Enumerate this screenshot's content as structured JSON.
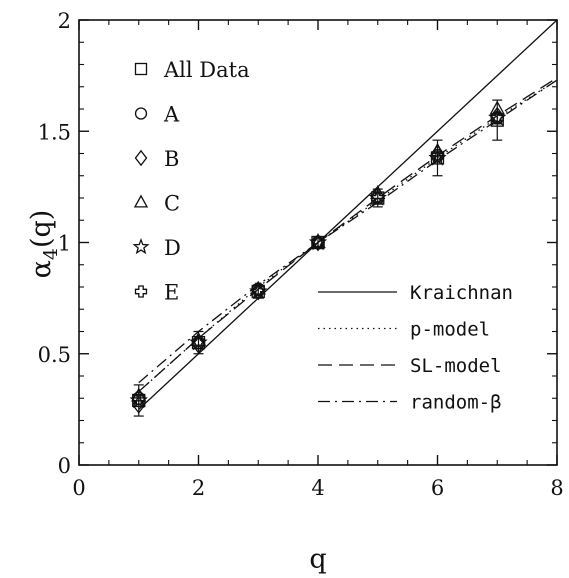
{
  "chart_data": {
    "type": "scatter",
    "title": "",
    "xlabel": "q",
    "ylabel_main": "α",
    "ylabel_sub": "4",
    "ylabel_tail": "(q)",
    "xlim": [
      0,
      8
    ],
    "ylim": [
      0,
      2
    ],
    "x_ticks": [
      0,
      2,
      4,
      6,
      8
    ],
    "x_tick_labels": [
      "0",
      "2",
      "4",
      "6",
      "8"
    ],
    "y_ticks": [
      0,
      0.5,
      1,
      1.5,
      2
    ],
    "y_tick_labels": [
      "0",
      "0.5",
      "1",
      "1.5",
      "2"
    ],
    "grid": false,
    "marker_legend_position": "top-left",
    "line_legend_position": "bottom-right",
    "marker_series": [
      {
        "name": "All Data",
        "marker": "square",
        "x": [
          1,
          2,
          3,
          4,
          5,
          6,
          7
        ],
        "y": [
          0.29,
          0.55,
          0.78,
          1.0,
          1.2,
          1.38,
          1.55
        ],
        "err": [
          0.07,
          0.05,
          0.03,
          0.02,
          0.04,
          0.08,
          0.09
        ]
      },
      {
        "name": "A",
        "marker": "circle",
        "x": [
          1,
          2,
          3,
          4,
          5,
          6,
          7
        ],
        "y": [
          0.3,
          0.55,
          0.79,
          1.0,
          1.2,
          1.39,
          1.56
        ]
      },
      {
        "name": "B",
        "marker": "diamond",
        "x": [
          1,
          2,
          3,
          4,
          5,
          6,
          7
        ],
        "y": [
          0.27,
          0.54,
          0.78,
          1.0,
          1.21,
          1.4,
          1.57
        ]
      },
      {
        "name": "C",
        "marker": "triangle",
        "x": [
          1,
          2,
          3,
          4,
          5,
          6,
          7
        ],
        "y": [
          0.31,
          0.56,
          0.79,
          1.0,
          1.22,
          1.41,
          1.6
        ]
      },
      {
        "name": "D",
        "marker": "star",
        "x": [
          1,
          2,
          3,
          4,
          5,
          6,
          7
        ],
        "y": [
          0.29,
          0.55,
          0.78,
          1.0,
          1.2,
          1.38,
          1.56
        ]
      },
      {
        "name": "E",
        "marker": "cross",
        "x": [
          1,
          2,
          3,
          4,
          5,
          6,
          7
        ],
        "y": [
          0.3,
          0.55,
          0.79,
          1.0,
          1.2,
          1.39,
          1.56
        ]
      }
    ],
    "line_series": [
      {
        "name": "Kraichnan",
        "style": "solid",
        "x": [
          1,
          2,
          3,
          4,
          5,
          6,
          7,
          8
        ],
        "y": [
          0.25,
          0.5,
          0.75,
          1.0,
          1.25,
          1.5,
          1.75,
          2.0
        ]
      },
      {
        "name": "p-model",
        "style": "dotted",
        "x": [
          1,
          2,
          3,
          4,
          5,
          6,
          7,
          8
        ],
        "y": [
          0.33,
          0.57,
          0.8,
          1.0,
          1.19,
          1.38,
          1.56,
          1.73
        ]
      },
      {
        "name": "SL-model",
        "style": "dashed",
        "x": [
          1,
          2,
          3,
          4,
          5,
          6,
          7,
          8
        ],
        "y": [
          0.33,
          0.57,
          0.79,
          1.0,
          1.2,
          1.39,
          1.57,
          1.74
        ]
      },
      {
        "name": "random-β",
        "style": "dashdot",
        "x": [
          1,
          2,
          3,
          4,
          5,
          6,
          7,
          8
        ],
        "y": [
          0.37,
          0.6,
          0.81,
          1.0,
          1.18,
          1.37,
          1.55,
          1.73
        ]
      }
    ]
  }
}
